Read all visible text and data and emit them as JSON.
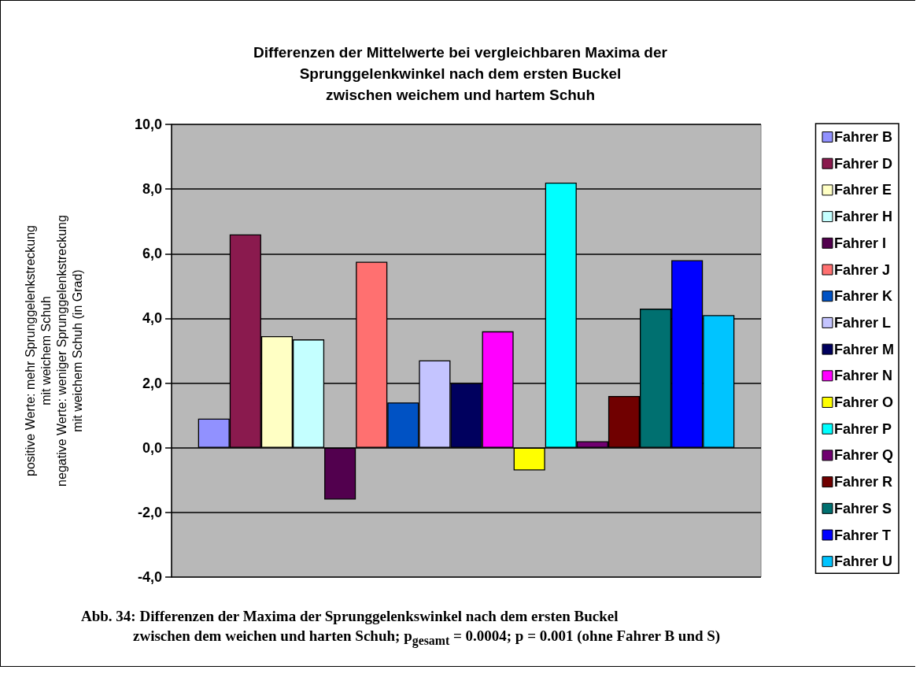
{
  "chart_data": {
    "type": "bar",
    "title": "Differenzen der Mittelwerte bei vergleichbaren Maxima der\nSprunggelenkwinkel nach dem ersten Buckel\nzwischen weichem und hartem Schuh",
    "ylabel": "positive Werte: mehr Sprunggelenkstreckung\nmit weichem Schuh\nnegative Werte: weniger Sprunggelenkstreckung\nmit weichem Schuh (in Grad)",
    "categories": [
      null
    ],
    "series": [
      {
        "name": "Fahrer B",
        "color": "#9191ff",
        "values": [
          0.9
        ]
      },
      {
        "name": "Fahrer D",
        "color": "#8a1a4e",
        "values": [
          6.6
        ]
      },
      {
        "name": "Fahrer E",
        "color": "#ffffc4",
        "values": [
          3.45
        ]
      },
      {
        "name": "Fahrer H",
        "color": "#c4ffff",
        "values": [
          3.35
        ]
      },
      {
        "name": "Fahrer I",
        "color": "#52004e",
        "values": [
          -1.6
        ]
      },
      {
        "name": "Fahrer J",
        "color": "#ff7070",
        "values": [
          5.75
        ]
      },
      {
        "name": "Fahrer K",
        "color": "#0052c4",
        "values": [
          1.4
        ]
      },
      {
        "name": "Fahrer L",
        "color": "#c4c4ff",
        "values": [
          2.7
        ]
      },
      {
        "name": "Fahrer M",
        "color": "#00005e",
        "values": [
          2.0
        ]
      },
      {
        "name": "Fahrer N",
        "color": "#ff00ff",
        "values": [
          3.6
        ]
      },
      {
        "name": "Fahrer O",
        "color": "#ffff00",
        "values": [
          -0.7
        ]
      },
      {
        "name": "Fahrer P",
        "color": "#00ffff",
        "values": [
          8.2
        ]
      },
      {
        "name": "Fahrer Q",
        "color": "#700070",
        "values": [
          0.2
        ]
      },
      {
        "name": "Fahrer R",
        "color": "#700000",
        "values": [
          1.6
        ]
      },
      {
        "name": "Fahrer S",
        "color": "#007070",
        "values": [
          4.3
        ]
      },
      {
        "name": "Fahrer T",
        "color": "#0000ff",
        "values": [
          5.8
        ]
      },
      {
        "name": "Fahrer U",
        "color": "#00c4ff",
        "values": [
          4.1
        ]
      }
    ],
    "ylim": [
      -4,
      10
    ],
    "yticks": [
      {
        "value": -4,
        "label": "-4,0"
      },
      {
        "value": -2,
        "label": "-2,0"
      },
      {
        "value": 0,
        "label": "0,0"
      },
      {
        "value": 2,
        "label": "2,0"
      },
      {
        "value": 4,
        "label": "4,0"
      },
      {
        "value": 6,
        "label": "6,0"
      },
      {
        "value": 8,
        "label": "8,0"
      },
      {
        "value": 10,
        "label": "10,0"
      }
    ],
    "grid": "y",
    "legend": "right",
    "annotations": [
      "Abb. 34: Differenzen der Maxima der Sprunggelenkswinkel nach dem ersten Buckel\nzwischen dem weichen und harten Schuh; p$_{gesamt}$ = 0.0004; p = 0.001 (ohne Fahrer B und S)"
    ]
  }
}
